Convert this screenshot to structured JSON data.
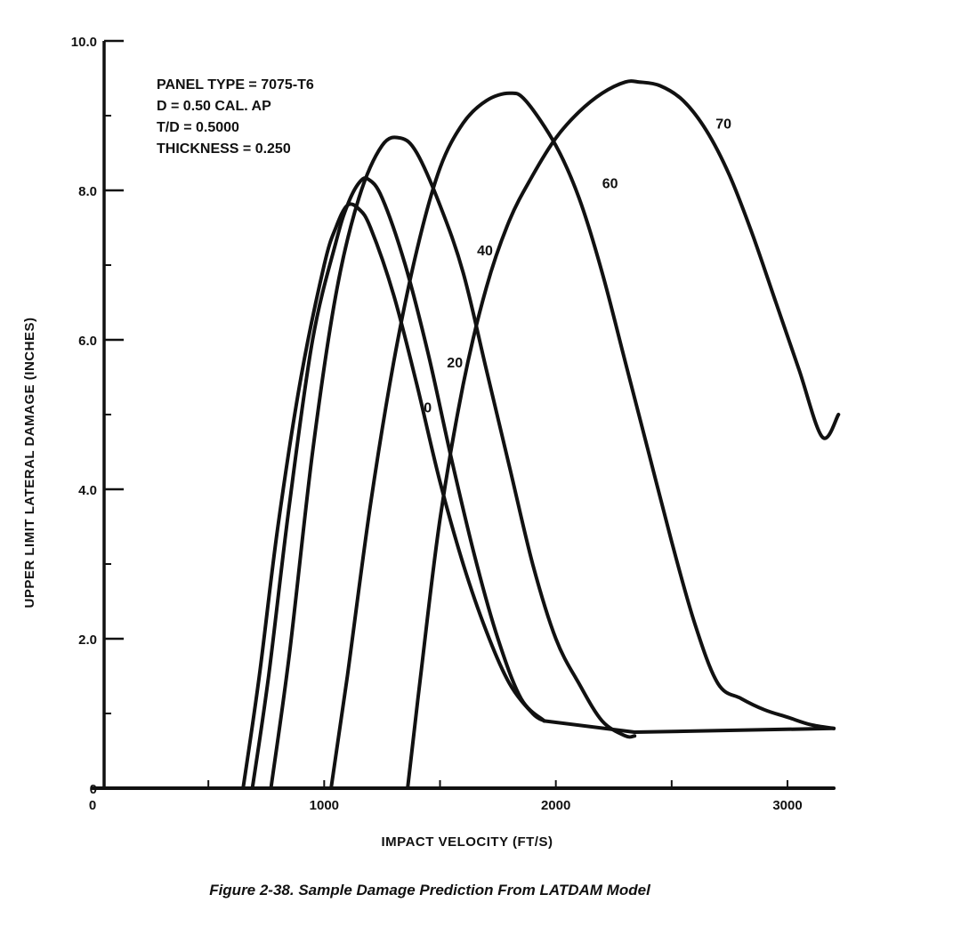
{
  "chart_data": {
    "type": "line",
    "title": "",
    "xlabel": "IMPACT VELOCITY (FT/S)",
    "ylabel": "UPPER LIMIT LATERAL DAMAGE (INCHES)",
    "xlim": [
      0,
      3200
    ],
    "ylim": [
      0,
      10
    ],
    "x_ticks": [
      0,
      1000,
      2000,
      3000
    ],
    "x_tick_labels": [
      "0",
      "1000",
      "2000",
      "3000"
    ],
    "x_minor_ticks": [
      500,
      1500,
      2500
    ],
    "y_ticks": [
      0,
      2,
      4,
      6,
      8,
      10
    ],
    "y_tick_labels": [
      "0",
      "2.0",
      "4.0",
      "6.0",
      "8.0",
      "10.0"
    ],
    "y_minor_ticks": [
      1,
      3,
      5,
      7,
      9
    ],
    "grid": false,
    "annotations": [
      "PANEL  TYPE  =  7075-T6",
      "D = 0.50 CAL. AP",
      "T/D = 0.5000",
      "THICKNESS  =  0.250"
    ],
    "caption": "Figure 2-38.  Sample Damage Prediction From LATDAM Model",
    "series": [
      {
        "name": "0",
        "label": "0",
        "label_at": [
          1430,
          5.1
        ],
        "x": [
          650,
          720,
          800,
          900,
          1000,
          1050,
          1100,
          1150,
          1200,
          1300,
          1400,
          1500,
          1600,
          1700,
          1800,
          1900,
          1950
        ],
        "y": [
          0,
          1.5,
          3.5,
          5.5,
          7.0,
          7.5,
          7.8,
          7.75,
          7.5,
          6.6,
          5.4,
          4.1,
          3.0,
          2.1,
          1.4,
          1.0,
          0.9
        ]
      },
      {
        "name": "20",
        "label": "20",
        "label_at": [
          1530,
          5.7
        ],
        "x": [
          690,
          760,
          850,
          950,
          1050,
          1100,
          1150,
          1190,
          1250,
          1350,
          1450,
          1550,
          1650,
          1750,
          1850,
          1950
        ],
        "y": [
          0,
          1.5,
          3.8,
          6.0,
          7.3,
          7.8,
          8.1,
          8.15,
          7.9,
          7.0,
          5.8,
          4.4,
          3.1,
          2.0,
          1.2,
          0.9
        ]
      },
      {
        "name": "40",
        "label": "40",
        "label_at": [
          1660,
          7.2
        ],
        "x": [
          770,
          850,
          950,
          1050,
          1150,
          1250,
          1330,
          1400,
          1500,
          1600,
          1700,
          1800,
          1900,
          2000,
          2100,
          2200,
          2300,
          2340
        ],
        "y": [
          0,
          1.8,
          4.5,
          6.6,
          7.9,
          8.6,
          8.7,
          8.5,
          7.8,
          6.9,
          5.6,
          4.3,
          3.0,
          2.0,
          1.4,
          0.9,
          0.7,
          0.7
        ]
      },
      {
        "name": "60",
        "label": "60",
        "label_at": [
          2200,
          8.1
        ],
        "x": [
          1030,
          1100,
          1200,
          1300,
          1400,
          1500,
          1600,
          1700,
          1800,
          1870,
          2000,
          2100,
          2200,
          2300,
          2400,
          2500,
          2600,
          2700,
          2800,
          2900,
          3000,
          3100,
          3200
        ],
        "y": [
          0,
          1.5,
          3.8,
          5.7,
          7.2,
          8.3,
          8.9,
          9.2,
          9.3,
          9.2,
          8.6,
          7.9,
          6.9,
          5.7,
          4.5,
          3.3,
          2.2,
          1.4,
          1.2,
          1.05,
          0.95,
          0.85,
          0.8
        ]
      },
      {
        "name": "70",
        "label": "70",
        "label_at": [
          2690,
          8.9
        ],
        "x": [
          1360,
          1420,
          1500,
          1600,
          1700,
          1800,
          1900,
          2000,
          2100,
          2200,
          2300,
          2360,
          2450,
          2550,
          2650,
          2750,
          2850,
          2950,
          3050,
          3150,
          3220
        ],
        "y": [
          0,
          1.6,
          3.6,
          5.4,
          6.7,
          7.6,
          8.2,
          8.7,
          9.05,
          9.3,
          9.45,
          9.45,
          9.4,
          9.2,
          8.8,
          8.2,
          7.4,
          6.5,
          5.6,
          4.7,
          5.0
        ]
      },
      {
        "name": "baseline",
        "label": "",
        "x": [
          0,
          3200
        ],
        "y": [
          0,
          0
        ]
      }
    ],
    "floor_line": {
      "x": [
        1950,
        2340,
        3200
      ],
      "y": [
        0.9,
        0.75,
        0.8
      ]
    }
  }
}
